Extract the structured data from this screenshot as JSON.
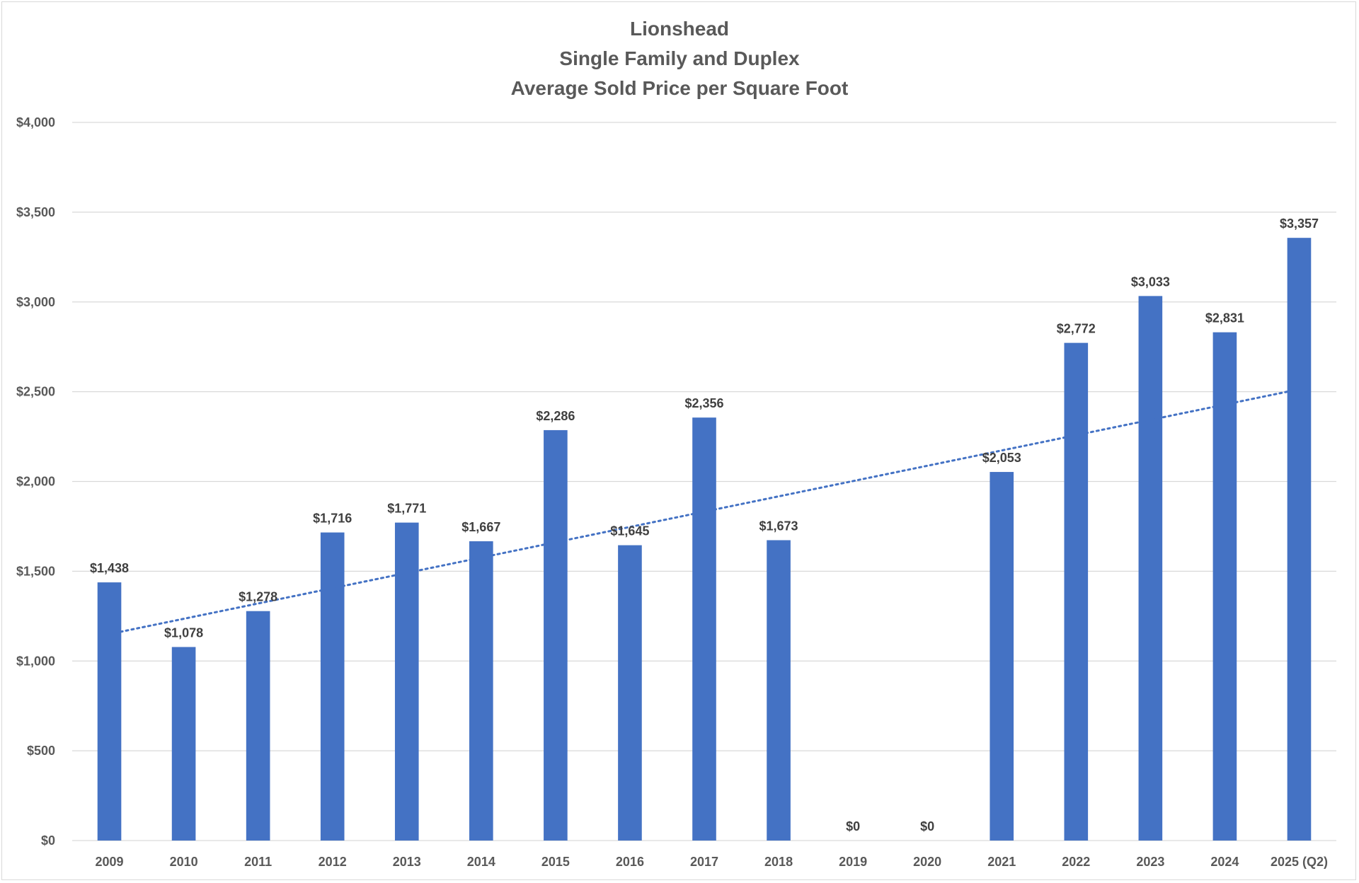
{
  "chart_data": {
    "type": "bar",
    "title_lines": [
      "Lionshead",
      "Single Family and Duplex",
      "Average Sold Price per Square Foot"
    ],
    "categories": [
      "2009",
      "2010",
      "2011",
      "2012",
      "2013",
      "2014",
      "2015",
      "2016",
      "2017",
      "2018",
      "2019",
      "2020",
      "2021",
      "2022",
      "2023",
      "2024",
      "2025 (Q2)"
    ],
    "values": [
      1438,
      1078,
      1278,
      1716,
      1771,
      1667,
      2286,
      1645,
      2356,
      1673,
      0,
      0,
      2053,
      2772,
      3033,
      2831,
      3357
    ],
    "data_labels": [
      "$1,438",
      "$1,078",
      "$1,278",
      "$1,716",
      "$1,771",
      "$1,667",
      "$2,286",
      "$1,645",
      "$2,356",
      "$1,673",
      "$0",
      "$0",
      "$2,053",
      "$2,772",
      "$3,033",
      "$2,831",
      "$3,357"
    ],
    "y_ticks": [
      0,
      500,
      1000,
      1500,
      2000,
      2500,
      3000,
      3500,
      4000
    ],
    "y_tick_labels": [
      "$0",
      "$500",
      "$1,000",
      "$1,500",
      "$2,000",
      "$2,500",
      "$3,000",
      "$3,500",
      "$4,000"
    ],
    "ylim": [
      0,
      4000
    ],
    "xlabel": "",
    "ylabel": "",
    "grid": true,
    "legend": "none",
    "trendline": {
      "type": "linear",
      "style": "dotted",
      "start_value": 1150,
      "end_value": 2500
    },
    "colors": {
      "bar": "#4472C4",
      "trendline": "#4472C4",
      "grid": "#d9d9d9"
    }
  }
}
